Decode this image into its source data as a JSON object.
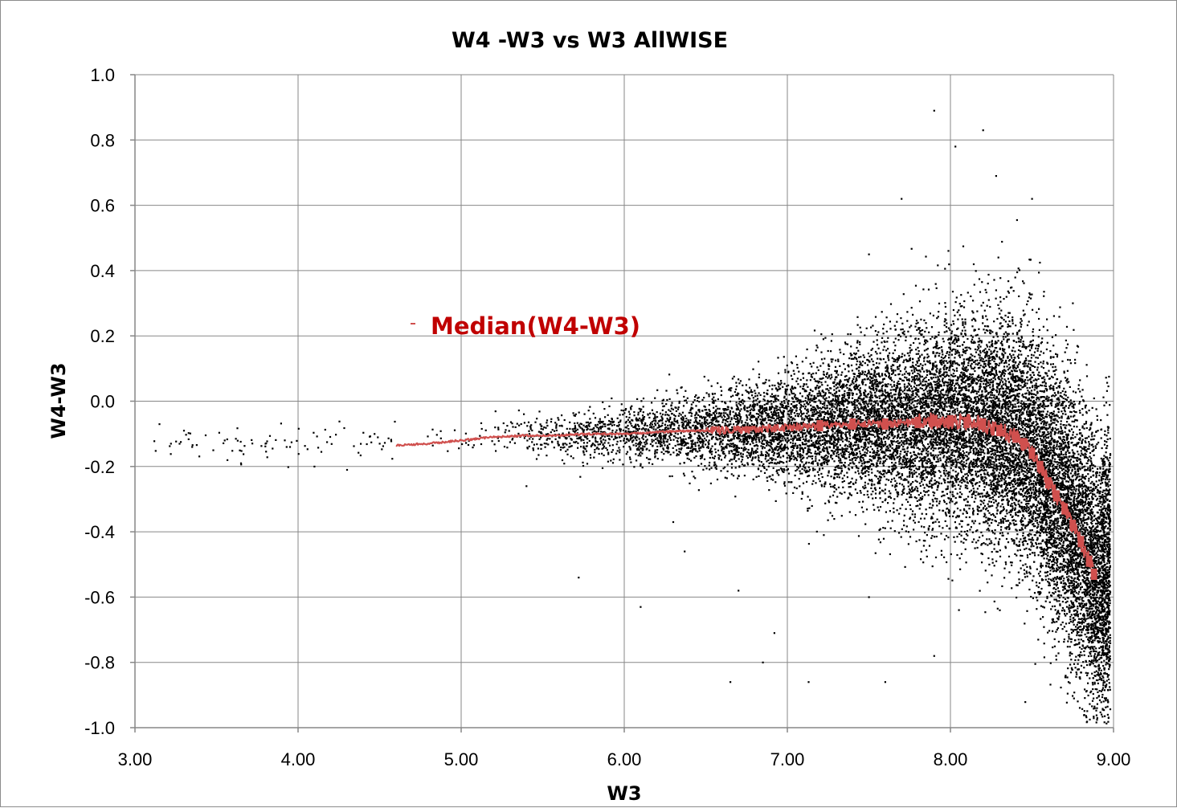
{
  "chart_data": {
    "type": "scatter",
    "title": "W4 -W3 vs W3 AllWISE",
    "xlabel": "W3",
    "ylabel": "W4-W3",
    "xlim": [
      3.0,
      9.0
    ],
    "ylim": [
      -1.0,
      1.0
    ],
    "x_ticks": [
      "3.00",
      "4.00",
      "5.00",
      "6.00",
      "7.00",
      "8.00",
      "9.00"
    ],
    "y_ticks": [
      "1.0",
      "0.8",
      "0.6",
      "0.4",
      "0.2",
      "0.0",
      "-0.2",
      "-0.4",
      "-0.6",
      "-0.8",
      "-1.0"
    ],
    "grid": true,
    "legend_position": "upper-left (in plot)",
    "series": [
      {
        "name": "",
        "kind": "scatter",
        "color": "#000000",
        "description_points": "dense black point cloud; spread grows with W3, centred near the median",
        "sample_points": [
          [
            3.15,
            -0.07
          ],
          [
            3.22,
            -0.13
          ],
          [
            3.3,
            -0.09
          ],
          [
            3.35,
            -0.14
          ],
          [
            3.48,
            -0.15
          ],
          [
            3.55,
            -0.12
          ],
          [
            3.65,
            -0.19
          ],
          [
            3.8,
            -0.13
          ],
          [
            3.95,
            -0.14
          ],
          [
            4.1,
            -0.2
          ],
          [
            4.3,
            -0.21
          ],
          [
            4.5,
            -0.13
          ],
          [
            5.4,
            -0.26
          ],
          [
            5.72,
            -0.54
          ],
          [
            6.1,
            -0.63
          ],
          [
            6.3,
            -0.37
          ],
          [
            6.37,
            -0.46
          ],
          [
            6.65,
            -0.86
          ],
          [
            6.7,
            -0.58
          ],
          [
            6.85,
            -0.8
          ],
          [
            6.92,
            -0.71
          ],
          [
            7.13,
            -0.86
          ],
          [
            7.5,
            -0.6
          ],
          [
            7.6,
            -0.86
          ],
          [
            7.9,
            -0.78
          ],
          [
            7.5,
            0.45
          ],
          [
            7.7,
            0.62
          ],
          [
            7.9,
            0.89
          ],
          [
            8.03,
            0.78
          ],
          [
            8.2,
            0.83
          ],
          [
            8.28,
            0.69
          ],
          [
            8.5,
            0.62
          ],
          [
            8.75,
            0.3
          ],
          [
            8.9,
            -0.97
          ]
        ]
      },
      {
        "name": "Median(W4-W3)",
        "kind": "line",
        "color": "#d0504e",
        "x": [
          4.6,
          4.8,
          5.0,
          5.2,
          5.4,
          5.6,
          5.8,
          6.0,
          6.2,
          6.4,
          6.6,
          6.8,
          7.0,
          7.2,
          7.4,
          7.6,
          7.8,
          7.9,
          8.0,
          8.1,
          8.2,
          8.3,
          8.4,
          8.45,
          8.5,
          8.55,
          8.6,
          8.65,
          8.7,
          8.75,
          8.8,
          8.85,
          8.88
        ],
        "y": [
          -0.135,
          -0.13,
          -0.12,
          -0.11,
          -0.105,
          -0.105,
          -0.1,
          -0.1,
          -0.095,
          -0.09,
          -0.09,
          -0.085,
          -0.08,
          -0.075,
          -0.07,
          -0.07,
          -0.065,
          -0.06,
          -0.06,
          -0.065,
          -0.07,
          -0.09,
          -0.11,
          -0.13,
          -0.16,
          -0.2,
          -0.25,
          -0.29,
          -0.33,
          -0.38,
          -0.43,
          -0.49,
          -0.53
        ]
      }
    ]
  }
}
